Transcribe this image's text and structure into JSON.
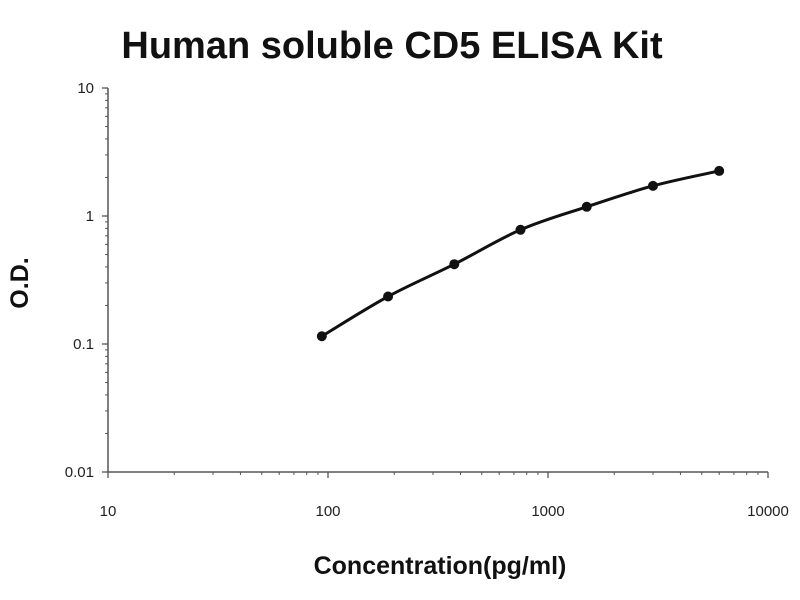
{
  "chart_data": {
    "type": "line",
    "title": "Human soluble CD5 ELISA Kit",
    "xlabel": "Concentration(pg/ml)",
    "ylabel": "O.D.",
    "xscale": "log",
    "yscale": "log",
    "xlim": [
      10,
      10000
    ],
    "ylim": [
      0.01,
      10
    ],
    "x_ticks": [
      10,
      100,
      1000,
      10000
    ],
    "x_tick_labels": [
      "10",
      "100",
      "1000",
      "10000"
    ],
    "y_ticks": [
      0.01,
      0.1,
      1,
      10
    ],
    "y_tick_labels": [
      "0.01",
      "0.1",
      "1",
      "10"
    ],
    "grid": false,
    "legend": "none",
    "colors": {
      "line": "#111111",
      "axis": "#555555"
    },
    "series": [
      {
        "x": [
          93.75,
          187.5,
          375,
          750,
          1500,
          3000,
          6000
        ],
        "y": [
          0.115,
          0.235,
          0.42,
          0.78,
          1.18,
          1.72,
          2.25
        ]
      }
    ]
  }
}
